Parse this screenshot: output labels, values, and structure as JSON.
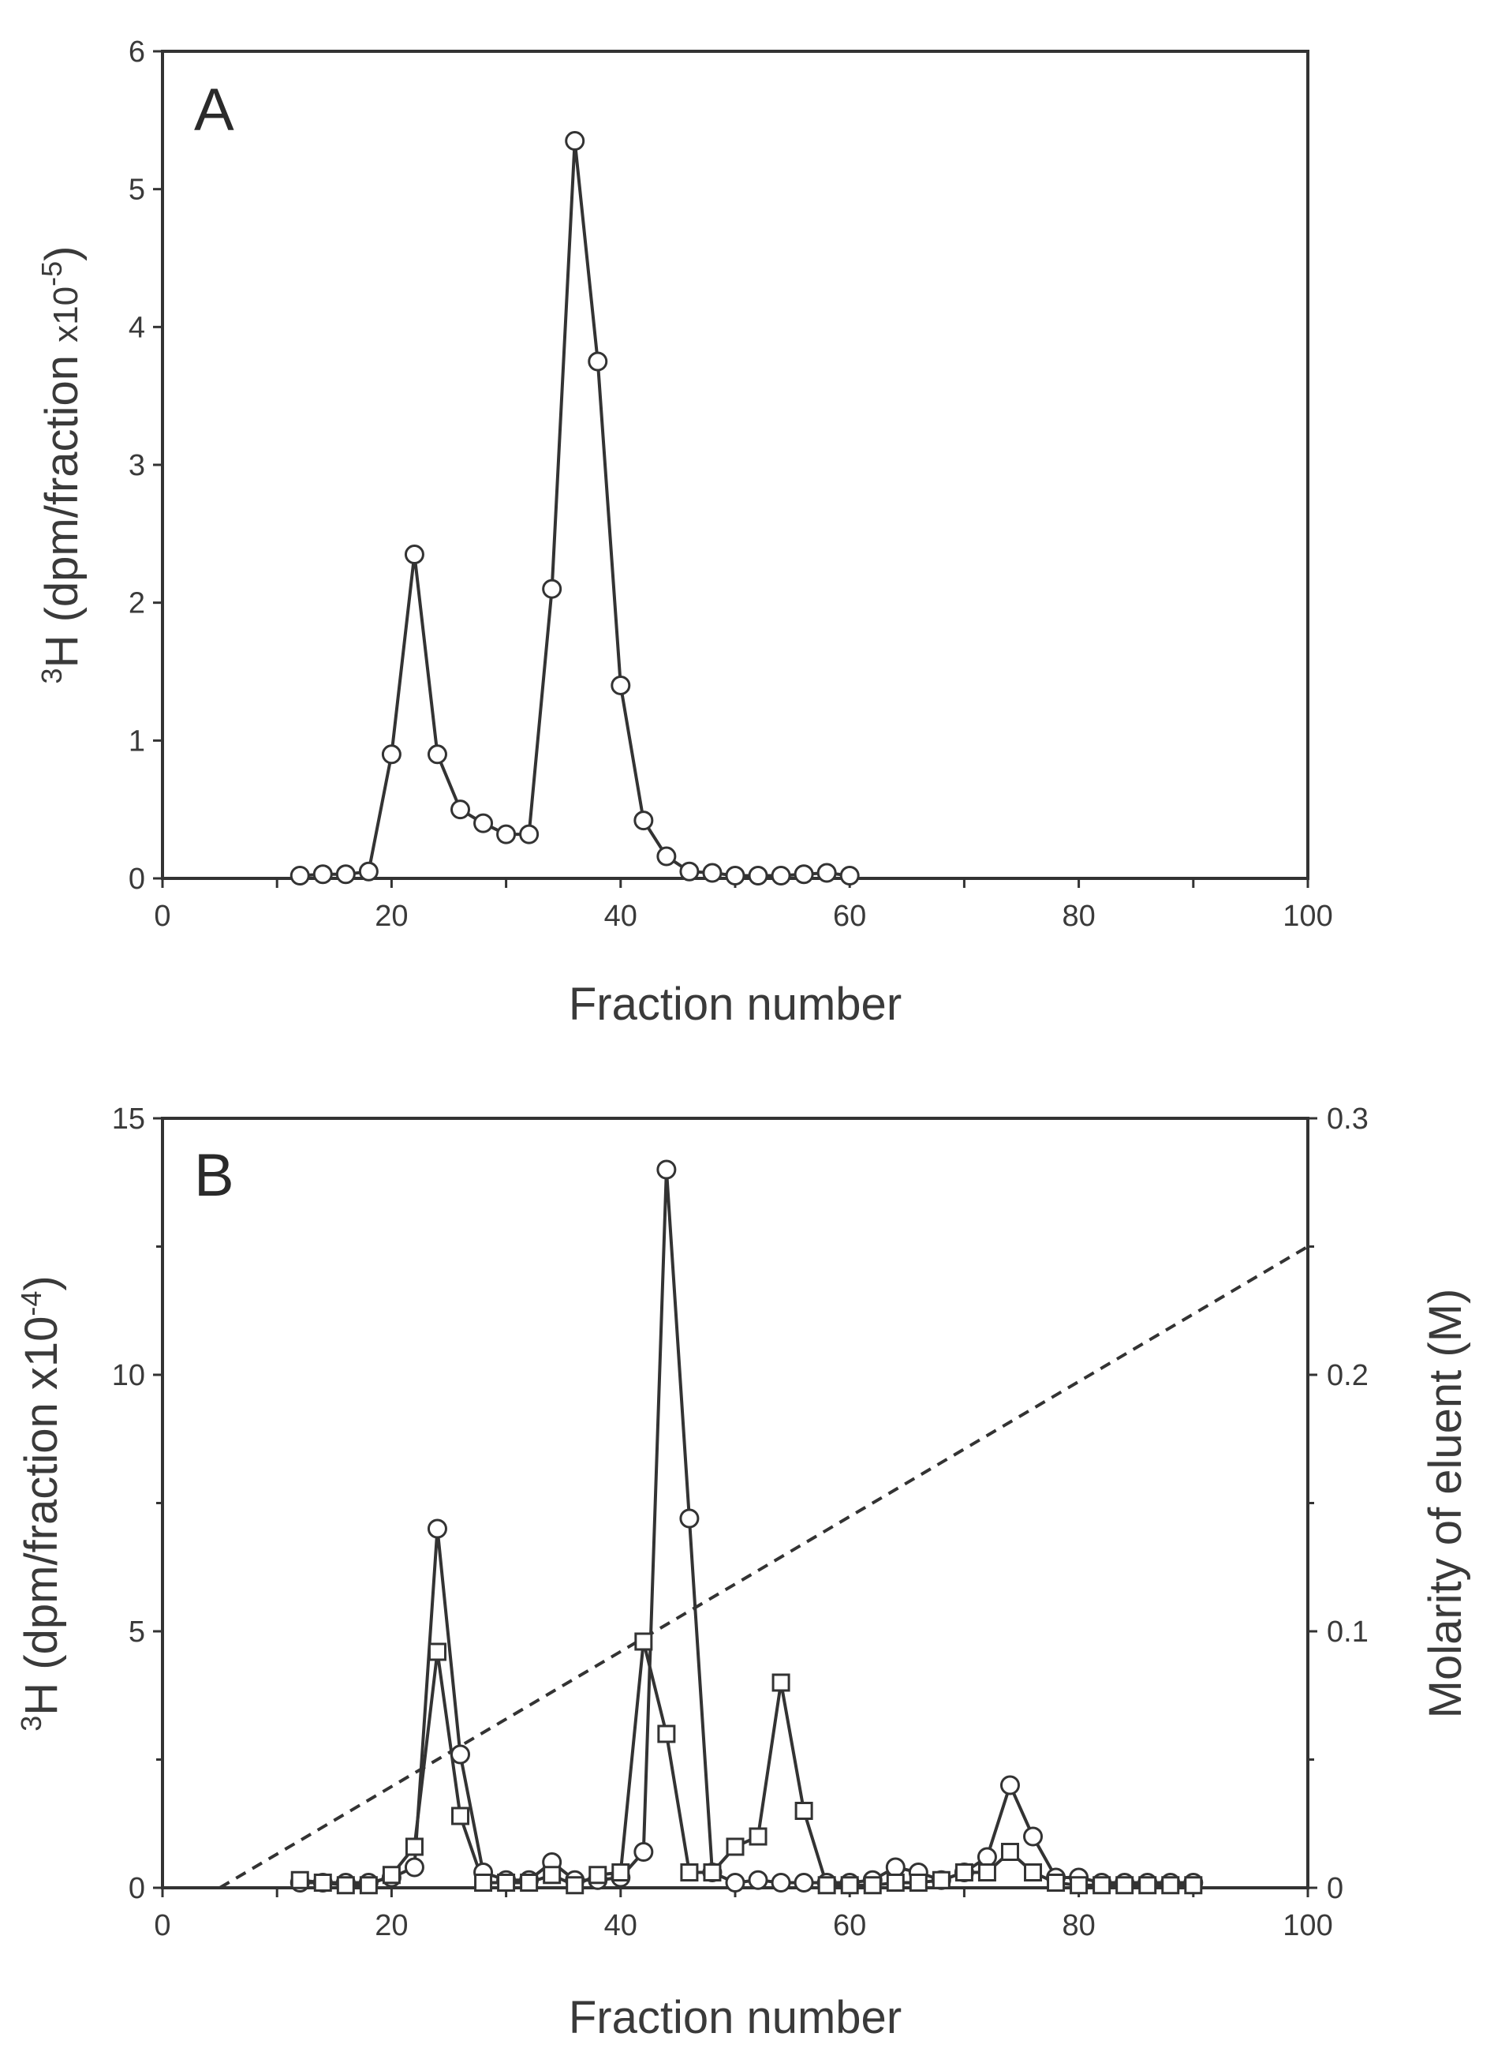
{
  "chart_data": [
    {
      "type": "line",
      "panel_label": "A",
      "xlabel": "Fraction number",
      "ylabel": "3H (dpm/fraction x10-5)",
      "ylabel_parts": {
        "sup_mass": "3",
        "element": "H (dpm/fraction ",
        "multiplier": "x10",
        "exponent": "-5",
        "close": ")"
      },
      "xlim": [
        0,
        100
      ],
      "ylim": [
        0,
        6
      ],
      "x_ticks": [
        0,
        20,
        40,
        60,
        80,
        100
      ],
      "y_ticks": [
        0,
        1,
        2,
        3,
        4,
        5,
        6
      ],
      "grid": false,
      "series": [
        {
          "name": "3H",
          "marker": "circle",
          "x": [
            12,
            14,
            16,
            18,
            20,
            22,
            24,
            26,
            28,
            30,
            32,
            34,
            36,
            38,
            40,
            42,
            44,
            46,
            48,
            50,
            52,
            54,
            56,
            58,
            60
          ],
          "y": [
            0.02,
            0.03,
            0.03,
            0.05,
            0.9,
            2.35,
            0.9,
            0.5,
            0.4,
            0.32,
            0.32,
            2.1,
            5.35,
            3.75,
            1.4,
            0.42,
            0.16,
            0.05,
            0.04,
            0.02,
            0.02,
            0.02,
            0.03,
            0.04,
            0.02
          ]
        }
      ]
    },
    {
      "type": "line",
      "panel_label": "B",
      "xlabel": "Fraction number",
      "ylabel": "3H (dpm/fraction x10-4)",
      "ylabel_parts": {
        "sup_mass": "3",
        "element": "H (dpm/fraction ",
        "multiplier": "x10",
        "exponent": "-4",
        "close": ")"
      },
      "y2label": "Molarity of eluent (M)",
      "xlim": [
        0,
        100
      ],
      "ylim": [
        0,
        15
      ],
      "y2lim": [
        0,
        0.3
      ],
      "x_ticks": [
        0,
        20,
        40,
        60,
        80,
        100
      ],
      "y_ticks": [
        0,
        5,
        10,
        15
      ],
      "y2_ticks": [
        0,
        0.1,
        0.2,
        0.3
      ],
      "y2_tick_labels": [
        "0",
        "0.1",
        "0.2",
        "0.3"
      ],
      "grid": false,
      "series": [
        {
          "name": "3H circles",
          "marker": "circle",
          "x": [
            12,
            14,
            16,
            18,
            20,
            22,
            24,
            26,
            28,
            30,
            32,
            34,
            36,
            38,
            40,
            42,
            44,
            46,
            48,
            50,
            52,
            54,
            56,
            58,
            60,
            62,
            64,
            66,
            68,
            70,
            72,
            74,
            76,
            78,
            80,
            82,
            84,
            86,
            88,
            90
          ],
          "y": [
            0.1,
            0.1,
            0.1,
            0.1,
            0.2,
            0.4,
            7.0,
            2.6,
            0.3,
            0.15,
            0.15,
            0.5,
            0.15,
            0.15,
            0.2,
            0.7,
            14.0,
            7.2,
            0.3,
            0.1,
            0.15,
            0.1,
            0.1,
            0.1,
            0.1,
            0.15,
            0.4,
            0.3,
            0.15,
            0.3,
            0.6,
            2.0,
            1.0,
            0.2,
            0.2,
            0.1,
            0.1,
            0.1,
            0.1,
            0.1
          ]
        },
        {
          "name": "3H squares",
          "marker": "square",
          "x": [
            12,
            14,
            16,
            18,
            20,
            22,
            24,
            26,
            28,
            30,
            32,
            34,
            36,
            38,
            40,
            42,
            44,
            46,
            48,
            50,
            52,
            54,
            56,
            58,
            60,
            62,
            64,
            66,
            68,
            70,
            72,
            74,
            76,
            78,
            80,
            82,
            84,
            86,
            88,
            90
          ],
          "y": [
            0.15,
            0.1,
            0.05,
            0.05,
            0.25,
            0.8,
            4.6,
            1.4,
            0.1,
            0.1,
            0.1,
            0.25,
            0.05,
            0.25,
            0.3,
            4.8,
            3.0,
            0.3,
            0.3,
            0.8,
            1.0,
            4.0,
            1.5,
            0.05,
            0.05,
            0.05,
            0.1,
            0.1,
            0.15,
            0.3,
            0.3,
            0.7,
            0.3,
            0.1,
            0.05,
            0.05,
            0.05,
            0.05,
            0.05,
            0.05
          ]
        },
        {
          "name": "Molarity gradient",
          "style": "dashed",
          "axis": "y2",
          "x": [
            5,
            100
          ],
          "y": [
            0,
            0.25
          ]
        }
      ]
    }
  ]
}
